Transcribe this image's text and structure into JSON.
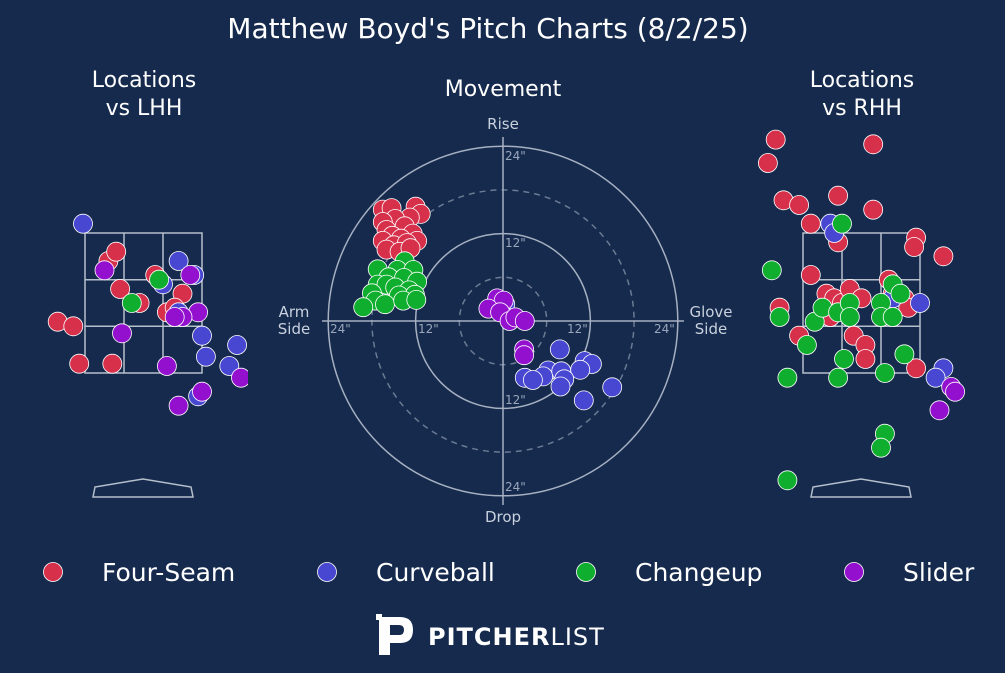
{
  "title": "Matthew Boyd's Pitch Charts (8/2/25)",
  "panels": {
    "lhh_title": [
      "Locations",
      "vs LHH"
    ],
    "movement_title": "Movement",
    "rhh_title": [
      "Locations",
      "vs RHH"
    ]
  },
  "movement_axes": {
    "top": "Rise",
    "bottom": "Drop",
    "left": [
      "Arm",
      "Side"
    ],
    "right": [
      "Glove",
      "Side"
    ],
    "ring_labels": [
      "12\"",
      "24\""
    ],
    "rings": [
      12,
      24
    ],
    "dashed_rings": [
      6,
      18
    ]
  },
  "brand": {
    "bold": "PITCHER",
    "light": "LIST"
  },
  "colors": {
    "background": "#152a4d",
    "Four-Seam": "#d6304b",
    "Curveball": "#4747d1",
    "Changeup": "#0fae2e",
    "Slider": "#9410cf"
  },
  "chart_data": [
    {
      "type": "scatter",
      "name": "Locations vs LHH",
      "units": "zone grid (0-3 across strike zone)",
      "series": [
        {
          "name": "Four-Seam",
          "points": [
            [
              0.6,
              2.4
            ],
            [
              0.8,
              2.6
            ],
            [
              1.8,
              2.1
            ],
            [
              0.9,
              1.8
            ],
            [
              1.4,
              1.5
            ],
            [
              -0.7,
              1.1
            ],
            [
              -0.3,
              1.0
            ],
            [
              2.1,
              1.3
            ],
            [
              2.5,
              1.7
            ],
            [
              2.3,
              1.4
            ],
            [
              -0.15,
              0.2
            ],
            [
              0.7,
              0.2
            ]
          ]
        },
        {
          "name": "Curveball",
          "points": [
            [
              -0.05,
              3.2
            ],
            [
              2.4,
              2.4
            ],
            [
              2.8,
              2.1
            ],
            [
              2.0,
              1.9
            ],
            [
              2.4,
              1.3
            ],
            [
              3.0,
              0.8
            ],
            [
              3.1,
              0.35
            ],
            [
              3.9,
              0.6
            ],
            [
              3.7,
              0.15
            ],
            [
              2.9,
              -0.5
            ]
          ]
        },
        {
          "name": "Changeup",
          "points": [
            [
              1.9,
              2.0
            ],
            [
              1.2,
              1.5
            ]
          ]
        },
        {
          "name": "Slider",
          "points": [
            [
              0.5,
              2.2
            ],
            [
              2.7,
              2.1
            ],
            [
              2.9,
              1.3
            ],
            [
              2.5,
              1.2
            ],
            [
              2.3,
              1.2
            ],
            [
              0.95,
              0.85
            ],
            [
              2.1,
              0.15
            ],
            [
              4.0,
              -0.1
            ],
            [
              3.0,
              -0.4
            ],
            [
              2.4,
              -0.7
            ]
          ]
        }
      ]
    },
    {
      "type": "scatter",
      "name": "Movement",
      "xlabel": "Arm Side / Glove Side",
      "ylabel": "Drop / Rise",
      "units": "inches",
      "xlim": [
        -24,
        24
      ],
      "ylim": [
        -24,
        24
      ],
      "series": [
        {
          "name": "Four-Seam",
          "points": [
            [
              -16.5,
              15.3
            ],
            [
              -15.3,
              15.5
            ],
            [
              -12.0,
              15.7
            ],
            [
              -11.3,
              14.7
            ],
            [
              -12.8,
              14.2
            ],
            [
              -14.8,
              14.0
            ],
            [
              -16.5,
              13.6
            ],
            [
              -16.0,
              12.5
            ],
            [
              -13.5,
              13.0
            ],
            [
              -12.4,
              12.0
            ],
            [
              -15.2,
              11.7
            ],
            [
              -16.5,
              11.0
            ],
            [
              -14.0,
              11.3
            ],
            [
              -11.8,
              11.0
            ],
            [
              -15.0,
              10.4
            ],
            [
              -13.2,
              10.7
            ],
            [
              -16.0,
              9.8
            ],
            [
              -14.2,
              9.5
            ],
            [
              -12.7,
              10.0
            ]
          ]
        },
        {
          "name": "Curveball",
          "points": [
            [
              0.3,
              2.3
            ],
            [
              -1.0,
              2.4
            ],
            [
              0.8,
              0.4
            ],
            [
              7.8,
              -3.9
            ],
            [
              11.2,
              -5.5
            ],
            [
              12.2,
              -5.9
            ],
            [
              6.2,
              -6.8
            ],
            [
              5.5,
              -7.6
            ],
            [
              8.0,
              -6.9
            ],
            [
              3.0,
              -7.8
            ],
            [
              4.1,
              -8.1
            ],
            [
              10.6,
              -6.7
            ],
            [
              8.4,
              -8.0
            ],
            [
              7.9,
              -9.0
            ],
            [
              15.0,
              -9.1
            ],
            [
              11.1,
              -10.9
            ]
          ]
        },
        {
          "name": "Changeup",
          "points": [
            [
              -13.5,
              8.2
            ],
            [
              -17.2,
              7.1
            ],
            [
              -14.5,
              7.0
            ],
            [
              -12.3,
              7.0
            ],
            [
              -15.7,
              6.0
            ],
            [
              -13.6,
              5.9
            ],
            [
              -17.2,
              5.0
            ],
            [
              -16.0,
              5.0
            ],
            [
              -11.8,
              5.4
            ],
            [
              -14.8,
              4.6
            ],
            [
              -12.9,
              4.2
            ],
            [
              -18.0,
              3.8
            ],
            [
              -14.3,
              3.5
            ],
            [
              -12.1,
              3.6
            ],
            [
              -17.5,
              2.8
            ],
            [
              -16.2,
              2.3
            ],
            [
              -13.7,
              2.8
            ],
            [
              -11.9,
              2.9
            ],
            [
              -19.2,
              1.9
            ]
          ]
        },
        {
          "name": "Slider",
          "points": [
            [
              -0.8,
              3.1
            ],
            [
              0.1,
              2.8
            ],
            [
              -2.0,
              1.7
            ],
            [
              -0.4,
              1.2
            ],
            [
              0.9,
              0.0
            ],
            [
              1.7,
              0.5
            ],
            [
              3.0,
              0.0
            ],
            [
              2.9,
              -3.9
            ],
            [
              2.9,
              -4.7
            ]
          ]
        }
      ]
    },
    {
      "type": "scatter",
      "name": "Locations vs RHH",
      "units": "zone grid (0-3 across strike zone)",
      "series": [
        {
          "name": "Four-Seam",
          "points": [
            [
              -0.7,
              5.0
            ],
            [
              -0.9,
              4.5
            ],
            [
              -0.5,
              3.7
            ],
            [
              -0.1,
              3.6
            ],
            [
              0.9,
              3.8
            ],
            [
              1.8,
              4.9
            ],
            [
              1.8,
              3.5
            ],
            [
              0.2,
              3.2
            ],
            [
              0.9,
              2.8
            ],
            [
              2.9,
              2.9
            ],
            [
              2.85,
              2.7
            ],
            [
              3.6,
              2.5
            ],
            [
              0.2,
              2.1
            ],
            [
              0.6,
              1.7
            ],
            [
              0.8,
              1.6
            ],
            [
              1.0,
              1.5
            ],
            [
              1.2,
              1.8
            ],
            [
              1.5,
              1.6
            ],
            [
              2.2,
              2.0
            ],
            [
              2.3,
              1.7
            ],
            [
              2.6,
              1.6
            ],
            [
              2.7,
              1.4
            ],
            [
              0.7,
              1.2
            ],
            [
              -0.6,
              1.4
            ],
            [
              -0.1,
              0.8
            ],
            [
              1.3,
              0.8
            ],
            [
              1.6,
              0.6
            ],
            [
              1.6,
              0.3
            ],
            [
              2.9,
              0.1
            ]
          ]
        },
        {
          "name": "Curveball",
          "points": [
            [
              0.7,
              3.2
            ],
            [
              0.8,
              3.0
            ],
            [
              2.3,
              1.6
            ],
            [
              3.0,
              1.5
            ],
            [
              3.6,
              0.1
            ],
            [
              3.4,
              -0.1
            ]
          ]
        },
        {
          "name": "Changeup",
          "points": [
            [
              1.0,
              3.2
            ],
            [
              -0.8,
              2.2
            ],
            [
              -0.6,
              1.2
            ],
            [
              0.3,
              1.1
            ],
            [
              0.5,
              1.4
            ],
            [
              0.9,
              1.3
            ],
            [
              1.2,
              1.5
            ],
            [
              1.2,
              1.2
            ],
            [
              2.3,
              1.9
            ],
            [
              2.5,
              1.7
            ],
            [
              2.0,
              1.5
            ],
            [
              2.0,
              1.2
            ],
            [
              2.3,
              1.2
            ],
            [
              0.1,
              0.6
            ],
            [
              2.6,
              0.4
            ],
            [
              1.05,
              0.3
            ],
            [
              2.1,
              0.0
            ],
            [
              0.9,
              -0.1
            ],
            [
              -0.4,
              -0.1
            ],
            [
              2.1,
              -1.3
            ],
            [
              2.0,
              -1.6
            ],
            [
              -0.4,
              -2.3
            ]
          ]
        },
        {
          "name": "Slider",
          "points": [
            [
              3.8,
              -0.3
            ],
            [
              3.9,
              -0.4
            ],
            [
              3.5,
              -0.8
            ]
          ]
        }
      ]
    }
  ]
}
